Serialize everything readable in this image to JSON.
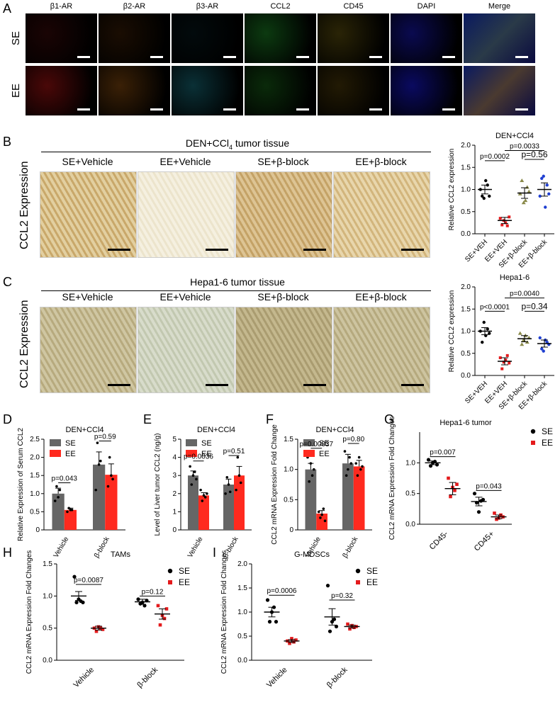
{
  "panel_labels": {
    "A": "A",
    "B": "B",
    "C": "C",
    "D": "D",
    "E": "E",
    "F": "F",
    "G": "G",
    "H": "H",
    "I": "I"
  },
  "panelA": {
    "channels": [
      "β1-AR",
      "β2-AR",
      "β3-AR",
      "CCL2",
      "CD45",
      "DAPI",
      "Merge"
    ],
    "rows": [
      "SE",
      "EE"
    ],
    "colors": {
      "SE": [
        "#1a0404",
        "#1a0d02",
        "#020a0c",
        "#0c3a10",
        "#2a2406",
        "#0a0a50",
        "#2a3a48"
      ],
      "EE": [
        "#4a0808",
        "#3a2006",
        "#0a3036",
        "#0a2a0a",
        "#221a04",
        "#0a0a60",
        "#4a3a30"
      ]
    }
  },
  "panelB": {
    "title": "DEN+CCl",
    "title_sub": "4",
    "title_suffix": " tumor tissue",
    "groups": [
      "SE+Vehicle",
      "EE+Vehicle",
      "SE+β-block",
      "EE+β-block"
    ],
    "ylabel": "CCL2 Expression"
  },
  "panelC": {
    "title": "Hepa1-6  tumor tissue",
    "groups": [
      "SE+Vehicle",
      "EE+Vehicle",
      "SE+β-block",
      "EE+β-block"
    ],
    "ylabel": "CCL2 Expression"
  },
  "chart_data": [
    {
      "id": "B-right",
      "type": "scatter",
      "title": "DEN+CCl4",
      "ylabel": "Relative CCL2 expression",
      "categories": [
        "SE+VEH",
        "EE+VEH",
        "SE+β-block",
        "EE+β-block"
      ],
      "ylim": [
        0,
        2.0
      ],
      "yticks": [
        0.0,
        0.5,
        1.0,
        1.5,
        2.0
      ],
      "tick_labels": [
        "0.0",
        "0.5",
        "1.0",
        "1.5",
        "2.0"
      ],
      "colors": [
        "#000000",
        "#e41a1c",
        "#8a8a4a",
        "#1f3fd1"
      ],
      "means": [
        1.0,
        0.3,
        0.92,
        1.0
      ],
      "sems": [
        0.1,
        0.07,
        0.12,
        0.15
      ],
      "points": [
        [
          1.0,
          0.85,
          0.8,
          1.2,
          1.1,
          0.85
        ],
        [
          0.35,
          0.2,
          0.3,
          0.25,
          0.18,
          0.38
        ],
        [
          0.9,
          1.2,
          0.7,
          0.75,
          1.05,
          0.95
        ],
        [
          0.85,
          1.25,
          1.3,
          0.6,
          1.1,
          0.9
        ]
      ],
      "pvalues": [
        {
          "text": "p=0.0002",
          "a": 0,
          "b": 1,
          "y": 1.65
        },
        {
          "text": "p=0.0033",
          "a": 1,
          "b": 3,
          "y": 1.88
        },
        {
          "text": "p=0.56",
          "a": 2,
          "b": 3,
          "y": 1.68
        }
      ]
    },
    {
      "id": "C-right",
      "type": "scatter",
      "title": "Hepa1-6",
      "ylabel": "Relative CCL2 expression",
      "categories": [
        "SE+VEH",
        "EE+VEH",
        "SE+β-block",
        "EE+β-block"
      ],
      "ylim": [
        0,
        2.0
      ],
      "yticks": [
        0.0,
        0.5,
        1.0,
        1.5,
        2.0
      ],
      "tick_labels": [
        "0.0",
        "0.5",
        "1.0",
        "1.5",
        "2.0"
      ],
      "colors": [
        "#000000",
        "#e41a1c",
        "#8a8a4a",
        "#1f3fd1"
      ],
      "means": [
        1.0,
        0.32,
        0.83,
        0.72
      ],
      "sems": [
        0.08,
        0.08,
        0.07,
        0.08
      ],
      "points": [
        [
          1.0,
          0.75,
          1.2,
          0.9,
          1.05,
          0.95
        ],
        [
          0.4,
          0.15,
          0.3,
          0.35,
          0.45,
          0.28
        ],
        [
          0.95,
          0.7,
          0.8,
          0.9,
          0.75,
          0.85
        ],
        [
          0.85,
          0.6,
          0.55,
          0.8,
          0.75,
          0.7
        ]
      ],
      "pvalues": [
        {
          "text": "p<0.0001",
          "a": 0,
          "b": 1,
          "y": 1.45
        },
        {
          "text": "p=0.0040",
          "a": 1,
          "b": 3,
          "y": 1.75
        },
        {
          "text": "p=0.34",
          "a": 2,
          "b": 3,
          "y": 1.45
        }
      ]
    },
    {
      "id": "D",
      "type": "bar",
      "title": "DEN+CCl4",
      "ylabel": "Relative Expression of Serum CCL2",
      "categories": [
        "Vehicle",
        "β-block"
      ],
      "series": [
        {
          "name": "SE",
          "values": [
            1.0,
            1.8
          ],
          "sems": [
            0.15,
            0.35
          ],
          "color": "#666666",
          "points": [
            [
              0.8,
              1.2,
              0.9,
              1.1
            ],
            [
              1.1,
              2.4,
              1.8,
              1.9
            ]
          ]
        },
        {
          "name": "EE",
          "values": [
            0.55,
            1.52
          ],
          "sems": [
            0.05,
            0.3
          ],
          "color": "#ff2a1f",
          "points": [
            [
              0.5,
              0.6,
              0.55,
              0.55
            ],
            [
              1.2,
              2.0,
              1.5,
              1.4
            ]
          ]
        }
      ],
      "ylim": [
        0,
        2.5
      ],
      "yticks": [
        0,
        0.5,
        1.0,
        1.5,
        2.0,
        2.5
      ],
      "tick_labels": [
        "0",
        "0.5",
        "1.0",
        "1.5",
        "2.0",
        "2.5"
      ],
      "pvalues": [
        {
          "text": "p=0.043",
          "cat": 0,
          "y": 1.3
        },
        {
          "text": "p=0.59",
          "cat": 1,
          "y": 2.45
        }
      ]
    },
    {
      "id": "E",
      "type": "bar",
      "title": "DEN+CCl4",
      "ylabel": "Level of Liver tumor CCL2 (ng/g)",
      "categories": [
        "Vehicle",
        "β-block"
      ],
      "series": [
        {
          "name": "SE",
          "values": [
            3.0,
            2.5
          ],
          "sems": [
            0.25,
            0.3
          ],
          "color": "#666666",
          "points": [
            [
              3.5,
              2.5,
              3.0,
              3.2,
              2.8
            ],
            [
              2.0,
              2.9,
              2.5,
              2.1
            ]
          ]
        },
        {
          "name": "EE",
          "values": [
            1.9,
            3.0
          ],
          "sems": [
            0.15,
            0.5
          ],
          "color": "#ff2a1f",
          "points": [
            [
              2.2,
              1.6,
              1.9,
              1.8,
              2.0
            ],
            [
              2.2,
              4.0,
              3.0,
              2.6
            ]
          ]
        }
      ],
      "ylim": [
        0,
        5
      ],
      "yticks": [
        0,
        1,
        2,
        3,
        4,
        5
      ],
      "tick_labels": [
        "0",
        "1",
        "2",
        "3",
        "4",
        "5"
      ],
      "pvalues": [
        {
          "text": "p=0.0036",
          "cat": 0,
          "y": 3.8
        },
        {
          "text": "p=0.51",
          "cat": 1,
          "y": 4.1
        }
      ]
    },
    {
      "id": "F",
      "type": "bar",
      "title": "DEN+CCl4",
      "ylabel": "CCL2 mRNA Expression Fold Change",
      "categories": [
        "Vehicle",
        "β-block"
      ],
      "series": [
        {
          "name": "SE",
          "values": [
            1.0,
            1.1
          ],
          "sems": [
            0.1,
            0.15
          ],
          "color": "#666666",
          "points": [
            [
              1.2,
              0.8,
              1.1,
              0.9,
              1.0
            ],
            [
              1.3,
              0.9,
              1.0,
              1.2,
              1.1
            ]
          ]
        },
        {
          "name": "EE",
          "values": [
            0.27,
            1.05
          ],
          "sems": [
            0.05,
            0.1
          ],
          "color": "#ff2a1f",
          "points": [
            [
              0.3,
              0.2,
              0.25,
              0.35,
              0.15
            ],
            [
              1.1,
              0.9,
              1.2,
              1.0,
              1.05
            ]
          ]
        }
      ],
      "ylim": [
        0,
        1.5
      ],
      "yticks": [
        0,
        0.5,
        1.0,
        1.5
      ],
      "tick_labels": [
        "0",
        "0.5",
        "1.0",
        "1.5"
      ],
      "pvalues": [
        {
          "text": "p=0.00037",
          "cat": 0,
          "y": 1.35
        },
        {
          "text": "p=0.80",
          "cat": 1,
          "y": 1.43
        }
      ]
    },
    {
      "id": "G",
      "type": "scatter",
      "title": "Hepa1-6 tumor",
      "ylabel": "CCL2 mRNA Expression Fold Changes",
      "categories": [
        "CD45-",
        "CD45+"
      ],
      "series": [
        {
          "name": "SE",
          "color": "#000000",
          "marker": "circle",
          "means": [
            1.0,
            0.37
          ],
          "sems": [
            0.03,
            0.07
          ],
          "points": [
            [
              1.05,
              0.95,
              1.0,
              1.02,
              0.97
            ],
            [
              0.5,
              0.35,
              0.2,
              0.38,
              0.4
            ]
          ]
        },
        {
          "name": "EE",
          "color": "#e41a1c",
          "marker": "square",
          "means": [
            0.58,
            0.12
          ],
          "sems": [
            0.1,
            0.03
          ],
          "points": [
            [
              0.75,
              0.45,
              0.6,
              0.55,
              0.65
            ],
            [
              0.18,
              0.08,
              0.1,
              0.15,
              0.12
            ]
          ]
        }
      ],
      "ylim": [
        0,
        1.5
      ],
      "yticks": [
        0.0,
        0.5,
        1.0
      ],
      "tick_labels": [
        "0.0",
        "0.5",
        "1.0"
      ],
      "pvalues": [
        {
          "text": "p=0.007",
          "cat": 0,
          "y": 1.1
        },
        {
          "text": "p=0.043",
          "cat": 1,
          "y": 0.55
        }
      ]
    },
    {
      "id": "H",
      "type": "scatter",
      "title": "TAMs",
      "ylabel": "CCL2 mRNA Expression Fold Changes",
      "categories": [
        "Vehicle",
        "β-block"
      ],
      "series": [
        {
          "name": "SE",
          "color": "#000000",
          "marker": "circle",
          "means": [
            1.0,
            0.91
          ],
          "sems": [
            0.07,
            0.04
          ],
          "points": [
            [
              1.3,
              0.9,
              0.95,
              0.92,
              0.9
            ],
            [
              0.95,
              0.88,
              0.9,
              0.85,
              0.93
            ]
          ]
        },
        {
          "name": "EE",
          "color": "#e41a1c",
          "marker": "square",
          "means": [
            0.5,
            0.72
          ],
          "sems": [
            0.03,
            0.08
          ],
          "points": [
            [
              0.5,
              0.45,
              0.52,
              0.5,
              0.48
            ],
            [
              0.85,
              0.55,
              0.7,
              0.65,
              0.8
            ]
          ]
        }
      ],
      "ylim": [
        0,
        1.5
      ],
      "yticks": [
        0.0,
        0.5,
        1.0,
        1.5
      ],
      "tick_labels": [
        "0.0",
        "0.5",
        "1.0",
        "1.5"
      ],
      "pvalues": [
        {
          "text": "p=0.0087",
          "cat": 0,
          "y": 1.18
        },
        {
          "text": "p=0.12",
          "cat": 1,
          "y": 1.0
        }
      ]
    },
    {
      "id": "I",
      "type": "scatter",
      "title": "G-MDSCs",
      "ylabel": "CCL2 mRNA Expression Fold Changes",
      "categories": [
        "Vehicle",
        "β-block"
      ],
      "series": [
        {
          "name": "SE",
          "color": "#000000",
          "marker": "circle",
          "means": [
            1.0,
            0.9
          ],
          "sems": [
            0.1,
            0.17
          ],
          "points": [
            [
              1.25,
              0.8,
              1.0,
              1.1,
              0.8
            ],
            [
              1.55,
              0.6,
              0.8,
              0.85,
              0.7
            ]
          ]
        },
        {
          "name": "EE",
          "color": "#e41a1c",
          "marker": "square",
          "means": [
            0.4,
            0.7
          ],
          "sems": [
            0.03,
            0.03
          ],
          "points": [
            [
              0.4,
              0.35,
              0.45,
              0.38,
              0.42
            ],
            [
              0.75,
              0.65,
              0.72,
              0.68,
              0.7
            ]
          ]
        }
      ],
      "ylim": [
        0,
        2.0
      ],
      "yticks": [
        0.0,
        0.5,
        1.0,
        1.5,
        2.0
      ],
      "tick_labels": [
        "0.0",
        "0.5",
        "1.0",
        "1.5",
        "2.0"
      ],
      "pvalues": [
        {
          "text": "p=0.0006",
          "cat": 0,
          "y": 1.35
        },
        {
          "text": "p=0.32",
          "cat": 1,
          "y": 1.25
        }
      ]
    }
  ]
}
